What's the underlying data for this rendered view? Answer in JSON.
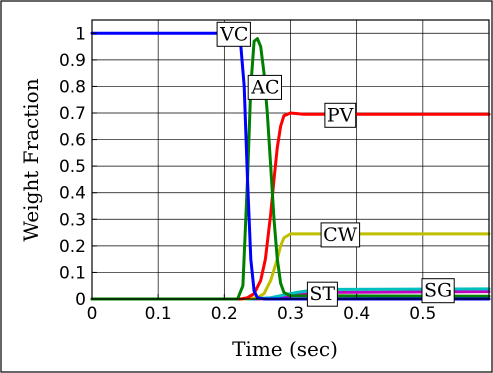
{
  "chart_data": {
    "type": "line",
    "xlabel": "Time (sec)",
    "ylabel": "Weight Fraction",
    "xlim": [
      0,
      0.6
    ],
    "ylim": [
      0,
      1.05
    ],
    "grid": true,
    "x_ticks": [
      "0",
      "0.1",
      "0.2",
      "0.3",
      "0.4",
      "0.5"
    ],
    "x_tick_values": [
      0,
      0.1,
      0.2,
      0.3,
      0.4,
      0.5
    ],
    "y_ticks": [
      "0",
      "0.1",
      "0.2",
      "0.3",
      "0.4",
      "0.5",
      "0.6",
      "0.7",
      "0.8",
      "0.9",
      "1"
    ],
    "y_tick_values": [
      0,
      0.1,
      0.2,
      0.3,
      0.4,
      0.5,
      0.6,
      0.7,
      0.8,
      0.9,
      1
    ],
    "series": [
      {
        "name": "VC",
        "color": "#0000ff",
        "label_at": [
          0.215,
          1.0
        ],
        "points": [
          [
            0,
            1.0
          ],
          [
            0.21,
            1.0
          ],
          [
            0.22,
            0.99
          ],
          [
            0.225,
            0.95
          ],
          [
            0.23,
            0.8
          ],
          [
            0.235,
            0.45
          ],
          [
            0.24,
            0.15
          ],
          [
            0.245,
            0.03
          ],
          [
            0.25,
            0.005
          ],
          [
            0.26,
            0.0
          ],
          [
            0.6,
            0.0
          ]
        ]
      },
      {
        "name": "AC",
        "color": "#008000",
        "label_at": [
          0.262,
          0.8
        ],
        "points": [
          [
            0,
            0.0
          ],
          [
            0.22,
            0.0
          ],
          [
            0.228,
            0.05
          ],
          [
            0.235,
            0.45
          ],
          [
            0.24,
            0.8
          ],
          [
            0.245,
            0.97
          ],
          [
            0.25,
            0.98
          ],
          [
            0.255,
            0.95
          ],
          [
            0.26,
            0.85
          ],
          [
            0.265,
            0.7
          ],
          [
            0.27,
            0.5
          ],
          [
            0.275,
            0.3
          ],
          [
            0.28,
            0.15
          ],
          [
            0.285,
            0.06
          ],
          [
            0.29,
            0.025
          ],
          [
            0.3,
            0.012
          ],
          [
            0.6,
            0.01
          ]
        ]
      },
      {
        "name": "PV",
        "color": "#ff0000",
        "label_at": [
          0.375,
          0.695
        ],
        "points": [
          [
            0,
            0.0
          ],
          [
            0.225,
            0.0
          ],
          [
            0.235,
            0.005
          ],
          [
            0.245,
            0.02
          ],
          [
            0.255,
            0.07
          ],
          [
            0.262,
            0.15
          ],
          [
            0.27,
            0.32
          ],
          [
            0.275,
            0.45
          ],
          [
            0.28,
            0.57
          ],
          [
            0.285,
            0.65
          ],
          [
            0.29,
            0.69
          ],
          [
            0.3,
            0.7
          ],
          [
            0.32,
            0.695
          ],
          [
            0.6,
            0.695
          ]
        ]
      },
      {
        "name": "CW",
        "color": "#bfbf00",
        "label_at": [
          0.375,
          0.245
        ],
        "points": [
          [
            0,
            0.0
          ],
          [
            0.23,
            0.0
          ],
          [
            0.25,
            0.005
          ],
          [
            0.26,
            0.02
          ],
          [
            0.27,
            0.07
          ],
          [
            0.28,
            0.15
          ],
          [
            0.285,
            0.2
          ],
          [
            0.29,
            0.23
          ],
          [
            0.3,
            0.245
          ],
          [
            0.6,
            0.245
          ]
        ]
      },
      {
        "name": "ST",
        "color": "#00bfbf",
        "label_at": [
          0.348,
          0.022
        ],
        "points": [
          [
            0,
            0.0
          ],
          [
            0.24,
            0.0
          ],
          [
            0.27,
            0.005
          ],
          [
            0.29,
            0.015
          ],
          [
            0.31,
            0.025
          ],
          [
            0.33,
            0.032
          ],
          [
            0.36,
            0.036
          ],
          [
            0.6,
            0.038
          ]
        ]
      },
      {
        "name": "SG",
        "color": "#bf00bf",
        "label_at": [
          0.523,
          0.035
        ],
        "points": [
          [
            0,
            0.0
          ],
          [
            0.25,
            0.0
          ],
          [
            0.28,
            0.004
          ],
          [
            0.3,
            0.012
          ],
          [
            0.33,
            0.02
          ],
          [
            0.36,
            0.025
          ],
          [
            0.6,
            0.028
          ]
        ]
      }
    ]
  }
}
